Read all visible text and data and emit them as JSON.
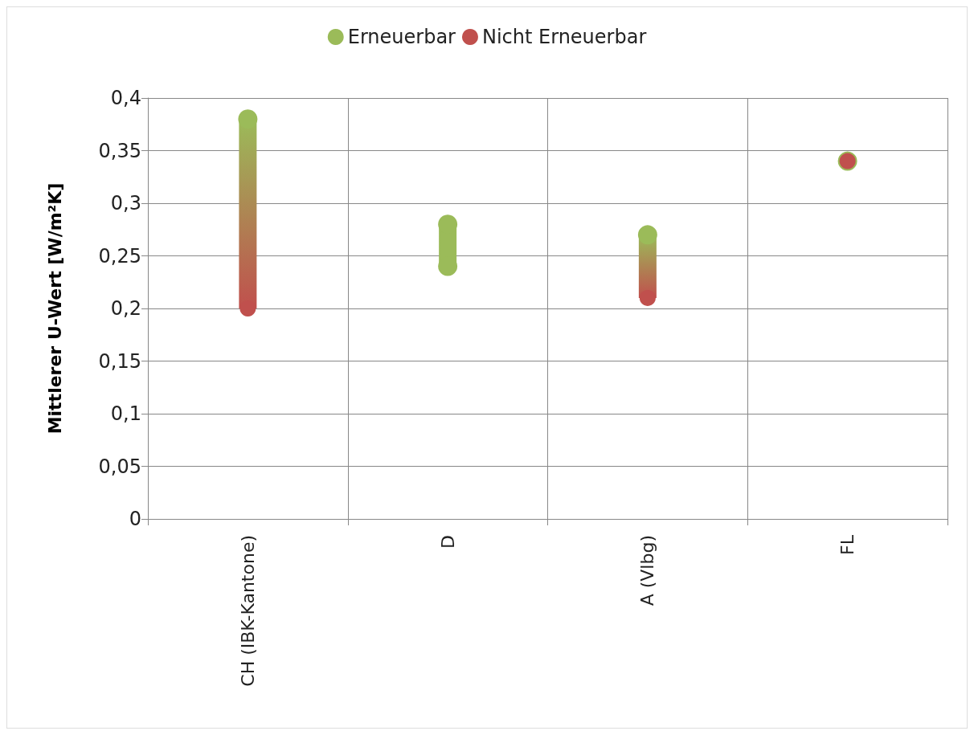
{
  "chart_data": {
    "type": "bar",
    "ylabel": "Mittlerer U-Wert [W/m²K]",
    "categories": [
      "CH (IBK-Kantone)",
      "D",
      "A (Vlbg)",
      "FL"
    ],
    "series": [
      {
        "base": [
          0.2,
          0.24,
          0.21,
          0.34
        ],
        "values": [
          0.18,
          0.04,
          0.06,
          0
        ]
      },
      {
        "type": "scatter",
        "name": "Erneuerbar",
        "color": "#9bbb59",
        "x": [
          "CH (IBK-Kantone)",
          "D",
          "D",
          "A (Vlbg)",
          "FL"
        ],
        "values": [
          0.38,
          0.28,
          0.24,
          0.27,
          0.34
        ]
      },
      {
        "type": "scatter",
        "name": "Nicht Erneuerbar",
        "color": "#c0504d",
        "values": [
          0.2,
          null,
          0.21,
          0.34
        ]
      }
    ],
    "ylim": [
      0,
      0.4
    ],
    "yticks": [
      0,
      {
        "value": 0.05,
        "label": "0,05"
      },
      {
        "value": 0.1,
        "label": "0,1"
      },
      {
        "value": 0.15,
        "label": "0,15"
      },
      {
        "value": 0.2,
        "label": "0,2"
      },
      {
        "value": 0.25,
        "label": "0,25"
      },
      {
        "value": 0.3,
        "label": "0,3"
      },
      {
        "value": 0.35,
        "label": "0,35"
      },
      {
        "value": 0.4,
        "label": "0,4"
      }
    ],
    "grid": true,
    "legend": "top",
    "marker": "circle"
  }
}
